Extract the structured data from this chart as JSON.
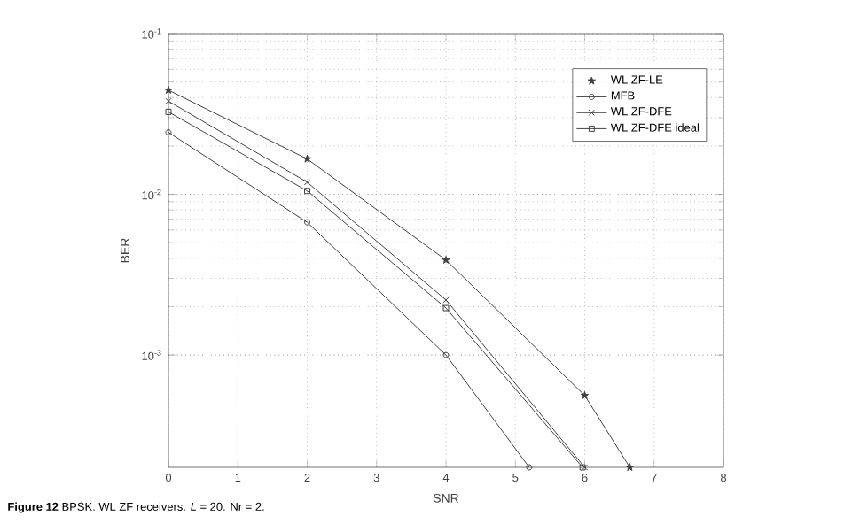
{
  "chart_data": {
    "type": "line",
    "xlabel": "SNR",
    "ylabel": "BER",
    "annotations": [
      "**Figure 12** BPSK. WL ZF receivers. *L* = 20. Nr = 2."
    ],
    "xlim": [
      0,
      8
    ],
    "xticks": [
      0,
      1,
      2,
      3,
      4,
      5,
      6,
      7,
      8
    ],
    "ylim": [
      0.0002,
      0.1
    ],
    "log": "y",
    "yticks": [
      {
        "value": 0.001,
        "label": "10$^{-3}$"
      },
      {
        "value": 0.01,
        "label": "10$^{-2}$"
      },
      {
        "value": 0.1,
        "label": "10$^{-1}$"
      }
    ],
    "grid": true,
    "legend": "top right",
    "line_style": "solid",
    "series": [
      {
        "name": "WL ZF-LE",
        "color": "#404040",
        "marker": "star",
        "x": [
          0,
          2,
          4,
          6,
          6.65
        ],
        "values": [
          0.0445,
          0.0166,
          0.0039,
          0.00056,
          0.0002
        ]
      },
      {
        "name": "MFB",
        "color": "#404040",
        "marker": "circle",
        "x": [
          0,
          2,
          4,
          5.2
        ],
        "values": [
          0.0243,
          0.0067,
          0.001,
          0.0002
        ]
      },
      {
        "name": "WL ZF-DFE",
        "color": "#404040",
        "marker": "cross",
        "x": [
          0,
          2,
          4,
          6
        ],
        "values": [
          0.038,
          0.0119,
          0.0022,
          0.0002
        ]
      },
      {
        "name": "WL ZF-DFE ideal",
        "color": "#404040",
        "marker": "square",
        "x": [
          0,
          2,
          4,
          5.97
        ],
        "values": [
          0.0326,
          0.0105,
          0.00196,
          0.0002
        ]
      }
    ]
  }
}
